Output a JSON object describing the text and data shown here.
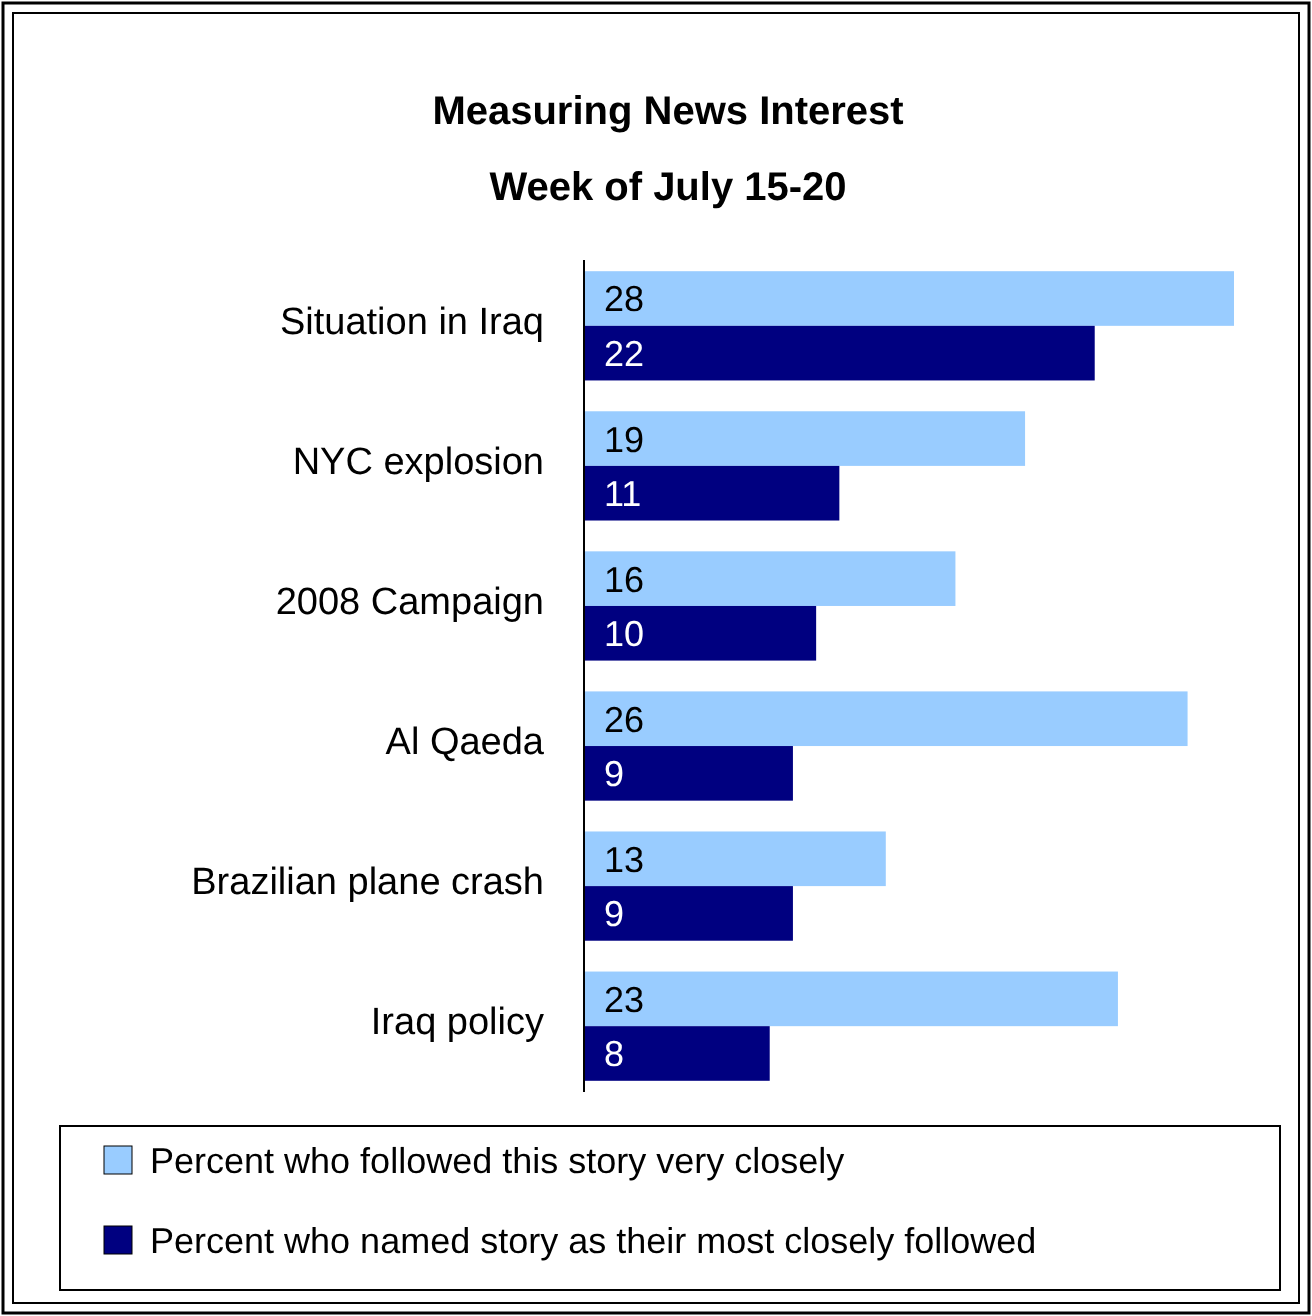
{
  "chart_data": {
    "type": "bar",
    "orientation": "horizontal",
    "title": "Measuring News Interest",
    "subtitle": "Week of July 15-20",
    "categories": [
      "Situation in Iraq",
      "NYC explosion",
      "2008 Campaign",
      "Al Qaeda",
      "Brazilian plane crash",
      "Iraq policy"
    ],
    "series": [
      {
        "name": "Percent who followed this story very closely",
        "color": "#99ccff",
        "values": [
          28,
          19,
          16,
          26,
          13,
          23
        ]
      },
      {
        "name": "Percent who named story as their most closely followed",
        "color": "#000080",
        "values": [
          22,
          11,
          10,
          9,
          9,
          8
        ]
      }
    ],
    "data_labels": true,
    "legend": "bottom",
    "grid": false
  }
}
